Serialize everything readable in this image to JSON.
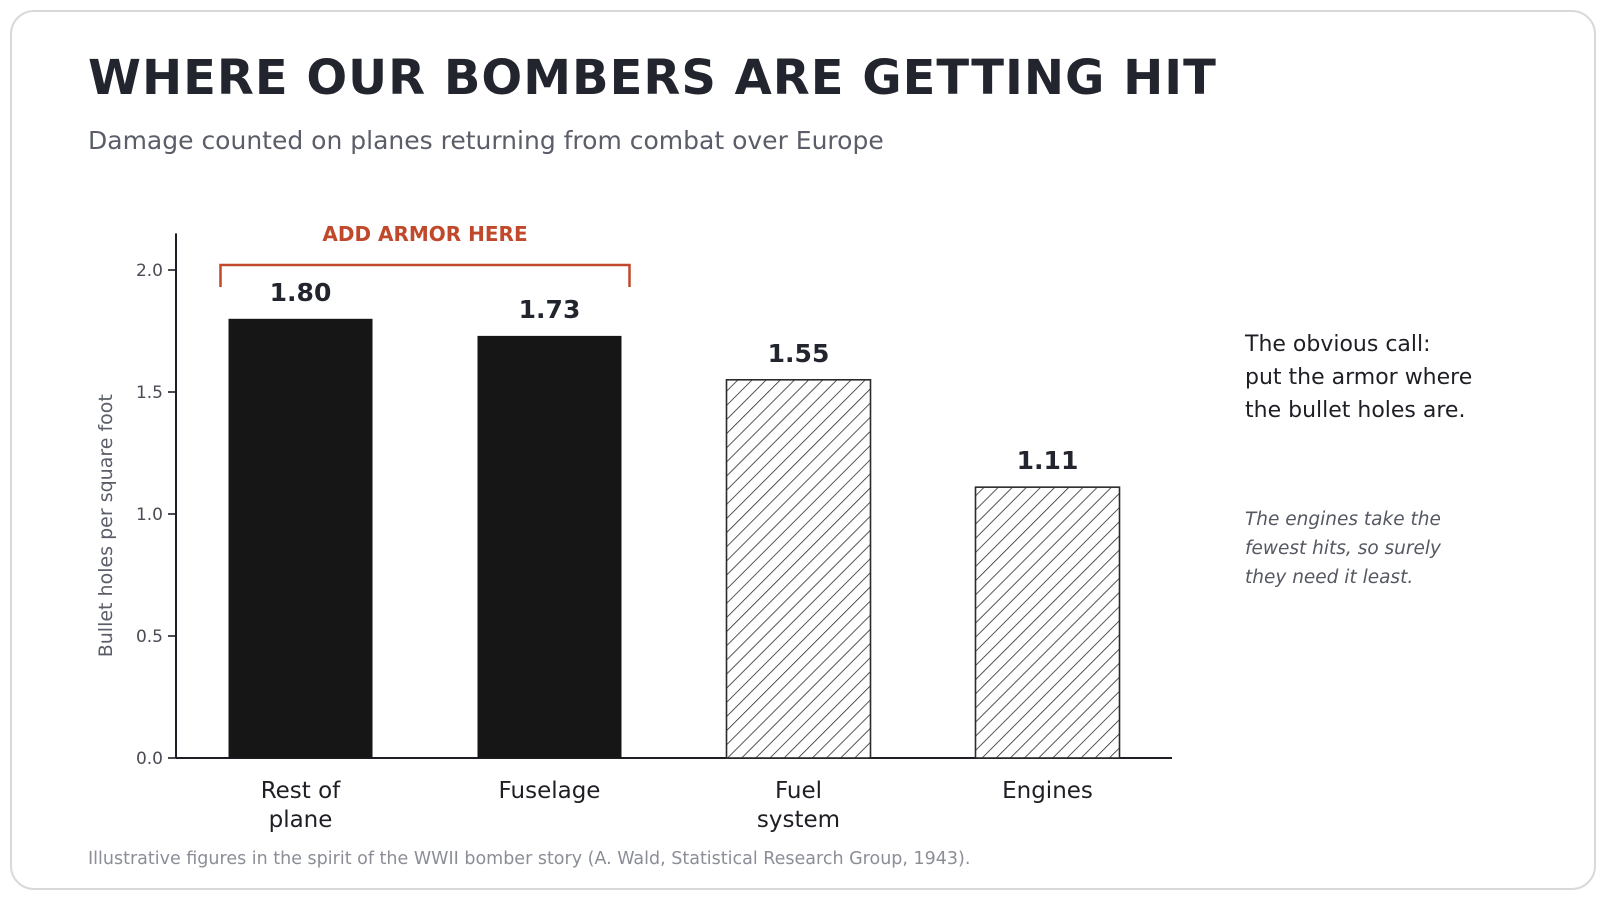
{
  "header": {
    "title": "WHERE OUR BOMBERS ARE GETTING HIT",
    "subtitle": "Damage counted on planes returning from combat over Europe"
  },
  "annotations": {
    "bracket_label": "ADD ARMOR HERE",
    "obvious_call": [
      "The obvious call:",
      "put the armor where",
      "the bullet holes are."
    ],
    "engines_note": [
      "The engines take the",
      "fewest hits, so surely",
      "they need it least."
    ]
  },
  "footnote": "Illustrative figures in the spirit of the WWII bomber story (A. Wald, Statistical Research Group, 1943).",
  "colors": {
    "solid_bar": "#161616",
    "hatch": "#2b2b2b",
    "accent": "#c0492b",
    "axis": "#1e1f25",
    "tick_text": "#4a4c55"
  },
  "chart_data": {
    "type": "bar",
    "categories": [
      [
        "Rest of",
        "plane"
      ],
      [
        "Fuselage"
      ],
      [
        "Fuel",
        "system"
      ],
      [
        "Engines"
      ]
    ],
    "values": [
      1.8,
      1.73,
      1.55,
      1.11
    ],
    "value_labels": [
      "1.80",
      "1.73",
      "1.55",
      "1.11"
    ],
    "styles": [
      "solid",
      "solid",
      "hatched",
      "hatched"
    ],
    "ylabel": "Bullet holes per square foot",
    "xlabel": "",
    "ylim": [
      0,
      2.15
    ],
    "yticks": [
      0.0,
      0.5,
      1.0,
      1.5,
      2.0
    ],
    "ytick_labels": [
      "0.0",
      "0.5",
      "1.0",
      "1.5",
      "2.0"
    ],
    "grid": false,
    "legend": "none",
    "highlight": {
      "label": "ADD ARMOR HERE",
      "bars": [
        0,
        1
      ]
    }
  }
}
